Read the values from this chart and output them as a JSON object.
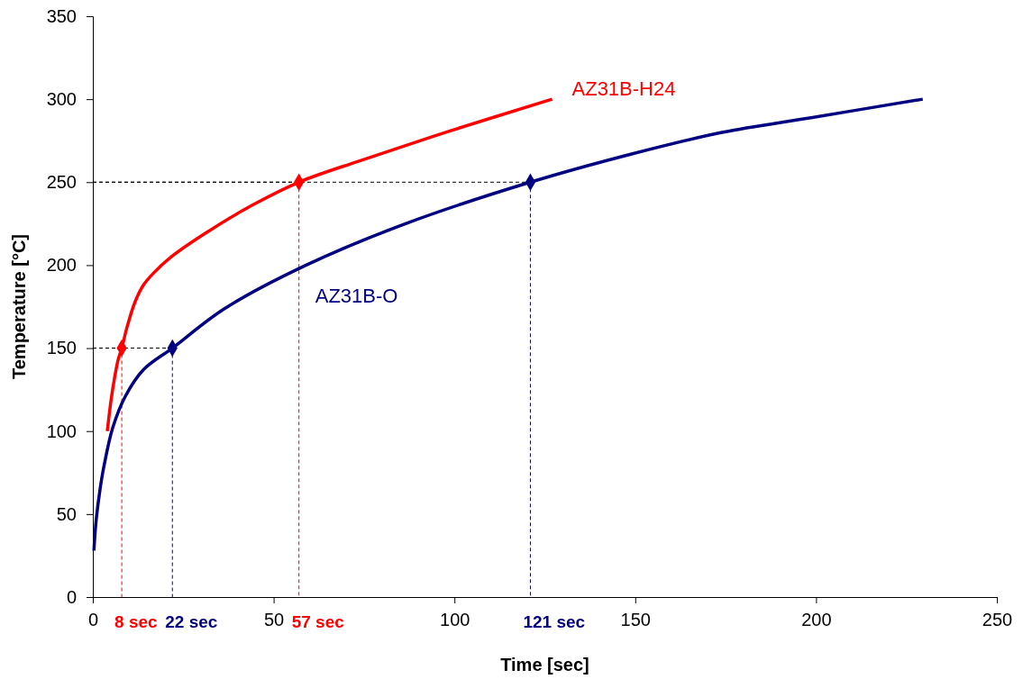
{
  "chart_data": {
    "type": "line",
    "xlabel": "Time [sec]",
    "ylabel": "Temperature [°C]",
    "xlim": [
      0,
      250
    ],
    "ylim": [
      0,
      350
    ],
    "xticks": [
      0,
      50,
      100,
      150,
      200,
      250
    ],
    "yticks": [
      0,
      50,
      100,
      150,
      200,
      250,
      300,
      350
    ],
    "series": [
      {
        "name": "AZ31B-H24",
        "color": "#ff0000",
        "x": [
          4,
          5,
          6,
          7,
          8,
          9.5,
          11.7,
          14,
          16.7,
          21.7,
          31.7,
          44,
          57,
          74,
          99,
          127
        ],
        "values": [
          100,
          118,
          132,
          143,
          150,
          163,
          178,
          188,
          195,
          205,
          220,
          236,
          250,
          263,
          281,
          300
        ]
      },
      {
        "name": "AZ31B-O",
        "color": "#000080",
        "x": [
          0.3,
          0.6,
          1,
          2,
          3,
          5.5,
          9,
          14,
          22,
          36.6,
          59,
          86.5,
          121,
          149,
          174,
          199,
          229.5
        ],
        "values": [
          28,
          38,
          48,
          65,
          78,
          102,
          121,
          137,
          150,
          174,
          200,
          225,
          250,
          267,
          280,
          289,
          300
        ]
      },
      {
        "type": "scatter",
        "marker": "diamond",
        "color": "#ff0000",
        "x": [
          8,
          57
        ],
        "values": [
          150,
          250
        ]
      },
      {
        "type": "scatter",
        "marker": "diamond",
        "color": "#000080",
        "x": [
          22,
          121
        ],
        "values": [
          150,
          250
        ]
      }
    ],
    "annotations": [
      {
        "text": "8 sec",
        "x": 8,
        "y": 150
      },
      {
        "text": "22 sec",
        "x": 22,
        "y": 150
      },
      {
        "text": "57 sec",
        "x": 57,
        "y": 250
      },
      {
        "text": "121 sec",
        "x": 121,
        "y": 250
      }
    ]
  }
}
